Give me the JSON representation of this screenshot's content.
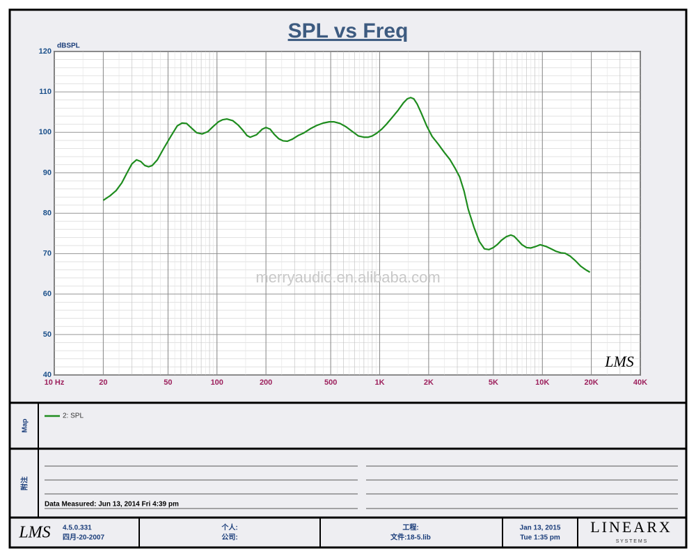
{
  "chart_data": {
    "type": "line",
    "title": "SPL vs Freq",
    "y_label": "dBSPL",
    "log_x": true,
    "grid": true,
    "minor_grid": true,
    "watermark": "merryaudio.en.alibaba.com",
    "logo": "LMS",
    "x": [
      20,
      22,
      24,
      26,
      28,
      30,
      32,
      34,
      36,
      38,
      40,
      43,
      47,
      52,
      57,
      61,
      65,
      70,
      75,
      81,
      88,
      95,
      102,
      108,
      115,
      125,
      135,
      145,
      153,
      160,
      175,
      190,
      200,
      212,
      225,
      240,
      255,
      271,
      290,
      315,
      340,
      375,
      410,
      450,
      490,
      525,
      570,
      620,
      680,
      740,
      800,
      850,
      900,
      960,
      1030,
      1100,
      1200,
      1300,
      1400,
      1480,
      1550,
      1620,
      1700,
      1800,
      1950,
      2100,
      2300,
      2500,
      2700,
      2900,
      3100,
      3300,
      3500,
      3800,
      4100,
      4400,
      4700,
      5000,
      5300,
      5600,
      6000,
      6400,
      6700,
      7000,
      7500,
      8000,
      8500,
      9000,
      9700,
      10500,
      11300,
      12100,
      13000,
      13800,
      14800,
      16000,
      17200,
      18500,
      19600
    ],
    "series": [
      {
        "name": "2: SPL",
        "color": "#1e8c1e",
        "values": [
          83.2,
          84.3,
          85.6,
          87.5,
          90,
          92.2,
          93.2,
          92.8,
          91.8,
          91.5,
          91.8,
          93.2,
          96,
          99,
          101.6,
          102.3,
          102.2,
          101,
          99.9,
          99.6,
          100.2,
          101.5,
          102.6,
          103.1,
          103.3,
          102.9,
          101.8,
          100.4,
          99.2,
          98.8,
          99.4,
          100.8,
          101.2,
          100.8,
          99.5,
          98.4,
          97.9,
          97.8,
          98.3,
          99.2,
          99.8,
          100.9,
          101.7,
          102.3,
          102.6,
          102.6,
          102.2,
          101.4,
          100.2,
          99.1,
          98.8,
          98.8,
          99.1,
          99.8,
          100.8,
          102,
          103.8,
          105.5,
          107.3,
          108.3,
          108.6,
          108.3,
          107,
          104.8,
          101.5,
          99,
          97,
          95,
          93.3,
          91.2,
          89,
          85.5,
          81,
          76.5,
          73,
          71.2,
          71,
          71.5,
          72.3,
          73.3,
          74.2,
          74.6,
          74.3,
          73.5,
          72.2,
          71.5,
          71.4,
          71.7,
          72.2,
          71.8,
          71.2,
          70.6,
          70.2,
          70.1,
          69.4,
          68.2,
          66.9,
          66,
          65.4
        ]
      }
    ],
    "xlim": [
      10,
      40000
    ],
    "xticks": [
      {
        "value": 10,
        "label": "10  Hz"
      },
      20,
      50,
      100,
      200,
      500,
      {
        "value": 1000,
        "label": "1K"
      },
      {
        "value": 2000,
        "label": "2K"
      },
      {
        "value": 5000,
        "label": "5K"
      },
      {
        "value": 10000,
        "label": "10K"
      },
      {
        "value": 20000,
        "label": "20K"
      },
      {
        "value": 40000,
        "label": "40K"
      }
    ],
    "ylim": [
      40,
      120
    ],
    "yticks": [
      40,
      50,
      60,
      70,
      80,
      90,
      100,
      110,
      120
    ]
  },
  "map_panel": {
    "label": "Map"
  },
  "notes_panel": {
    "label": "附注",
    "data_measured": "Data Measured: Jun 13, 2014  Fri  4:39 pm"
  },
  "footer": {
    "logo": "LMS",
    "version": "4.5.0.331",
    "version_date": "四月-20-2007",
    "person": "个人:",
    "company": "公司:",
    "project": "工程:",
    "file": "文件:18-5.lib",
    "date": "Jan 13, 2015",
    "time": "Tue  1:35 pm",
    "brand": "LINEARX",
    "brand_sub": "S Y S T E M S"
  }
}
